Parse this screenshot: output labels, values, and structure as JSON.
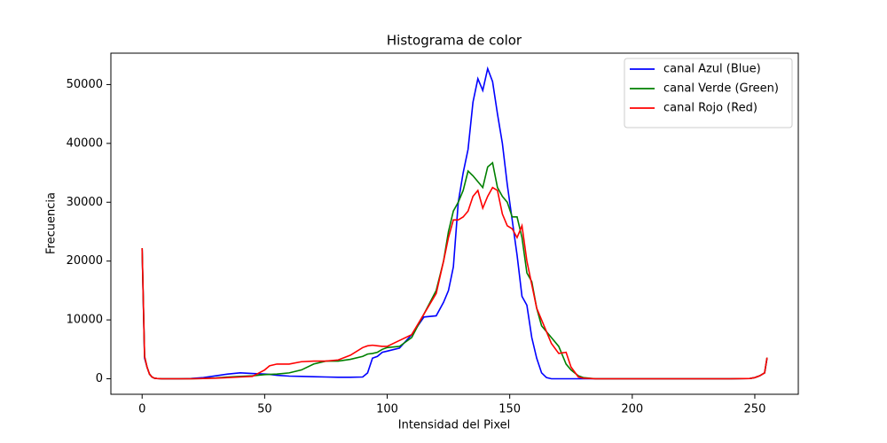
{
  "chart_data": {
    "type": "line",
    "title": "Histograma de color",
    "xlabel": "Intensidad del Pixel",
    "ylabel": "Frecuencia",
    "x": [
      0,
      1,
      2,
      3,
      4,
      5,
      6,
      8,
      10,
      15,
      20,
      25,
      30,
      35,
      40,
      45,
      50,
      52,
      55,
      60,
      65,
      70,
      75,
      80,
      85,
      90,
      92,
      94,
      96,
      98,
      100,
      105,
      110,
      115,
      120,
      123,
      125,
      127,
      129,
      131,
      133,
      135,
      137,
      139,
      141,
      143,
      145,
      147,
      149,
      151,
      153,
      155,
      157,
      159,
      161,
      163,
      165,
      167,
      170,
      173,
      175,
      178,
      180,
      185,
      200,
      220,
      240,
      248,
      250,
      252,
      254,
      255
    ],
    "series": [
      {
        "name": "canal Azul (Blue)",
        "color": "#0000ff",
        "values": [
          22000,
          3500,
          2000,
          800,
          300,
          100,
          50,
          0,
          0,
          0,
          50,
          200,
          500,
          800,
          1000,
          900,
          800,
          750,
          600,
          450,
          400,
          350,
          300,
          250,
          250,
          300,
          1000,
          3500,
          3800,
          4500,
          4700,
          5200,
          7500,
          10500,
          10700,
          13000,
          15000,
          19000,
          30000,
          35000,
          39000,
          47000,
          51000,
          49000,
          52700,
          50500,
          45000,
          40000,
          33000,
          27000,
          21000,
          14000,
          12500,
          7000,
          3500,
          1000,
          200,
          0,
          0,
          0,
          0,
          0,
          0,
          0,
          0,
          0,
          0,
          50,
          200,
          500,
          1000,
          3500
        ]
      },
      {
        "name": "canal Verde (Green)",
        "color": "#008000",
        "values": [
          22200,
          3800,
          2000,
          800,
          300,
          100,
          50,
          0,
          0,
          0,
          0,
          50,
          150,
          300,
          400,
          500,
          700,
          750,
          800,
          1000,
          1500,
          2500,
          3000,
          3000,
          3300,
          3800,
          4200,
          4300,
          4500,
          5000,
          5300,
          5500,
          7000,
          11000,
          15000,
          20000,
          25000,
          28500,
          30000,
          32000,
          35300,
          34500,
          33500,
          32500,
          36000,
          36700,
          32500,
          31000,
          30000,
          27500,
          27500,
          24000,
          18000,
          16500,
          12000,
          9000,
          8000,
          7000,
          5500,
          2500,
          1500,
          500,
          200,
          0,
          0,
          0,
          0,
          50,
          200,
          500,
          1000,
          3600
        ]
      },
      {
        "name": "canal Rojo (Red)",
        "color": "#ff0000",
        "values": [
          22200,
          3800,
          2000,
          800,
          300,
          100,
          50,
          0,
          0,
          0,
          0,
          50,
          100,
          200,
          300,
          400,
          1500,
          2200,
          2500,
          2500,
          2900,
          3000,
          3000,
          3200,
          4000,
          5300,
          5600,
          5700,
          5600,
          5500,
          5500,
          6500,
          7500,
          11000,
          14500,
          20000,
          24000,
          27000,
          27000,
          27500,
          28500,
          31000,
          32000,
          29000,
          31000,
          32500,
          32000,
          28000,
          26000,
          25500,
          24000,
          26000,
          20000,
          16000,
          12000,
          10000,
          8000,
          6000,
          4300,
          4500,
          2000,
          300,
          100,
          0,
          0,
          0,
          0,
          50,
          200,
          500,
          1000,
          3600
        ]
      }
    ],
    "xlim": [
      -12.75,
      267.75
    ],
    "xticks": [
      0,
      50,
      100,
      150,
      200,
      250
    ],
    "ylim": [
      -2635,
      55335
    ],
    "yticks": [
      0,
      10000,
      20000,
      30000,
      40000,
      50000
    ],
    "legend": "upper right"
  }
}
